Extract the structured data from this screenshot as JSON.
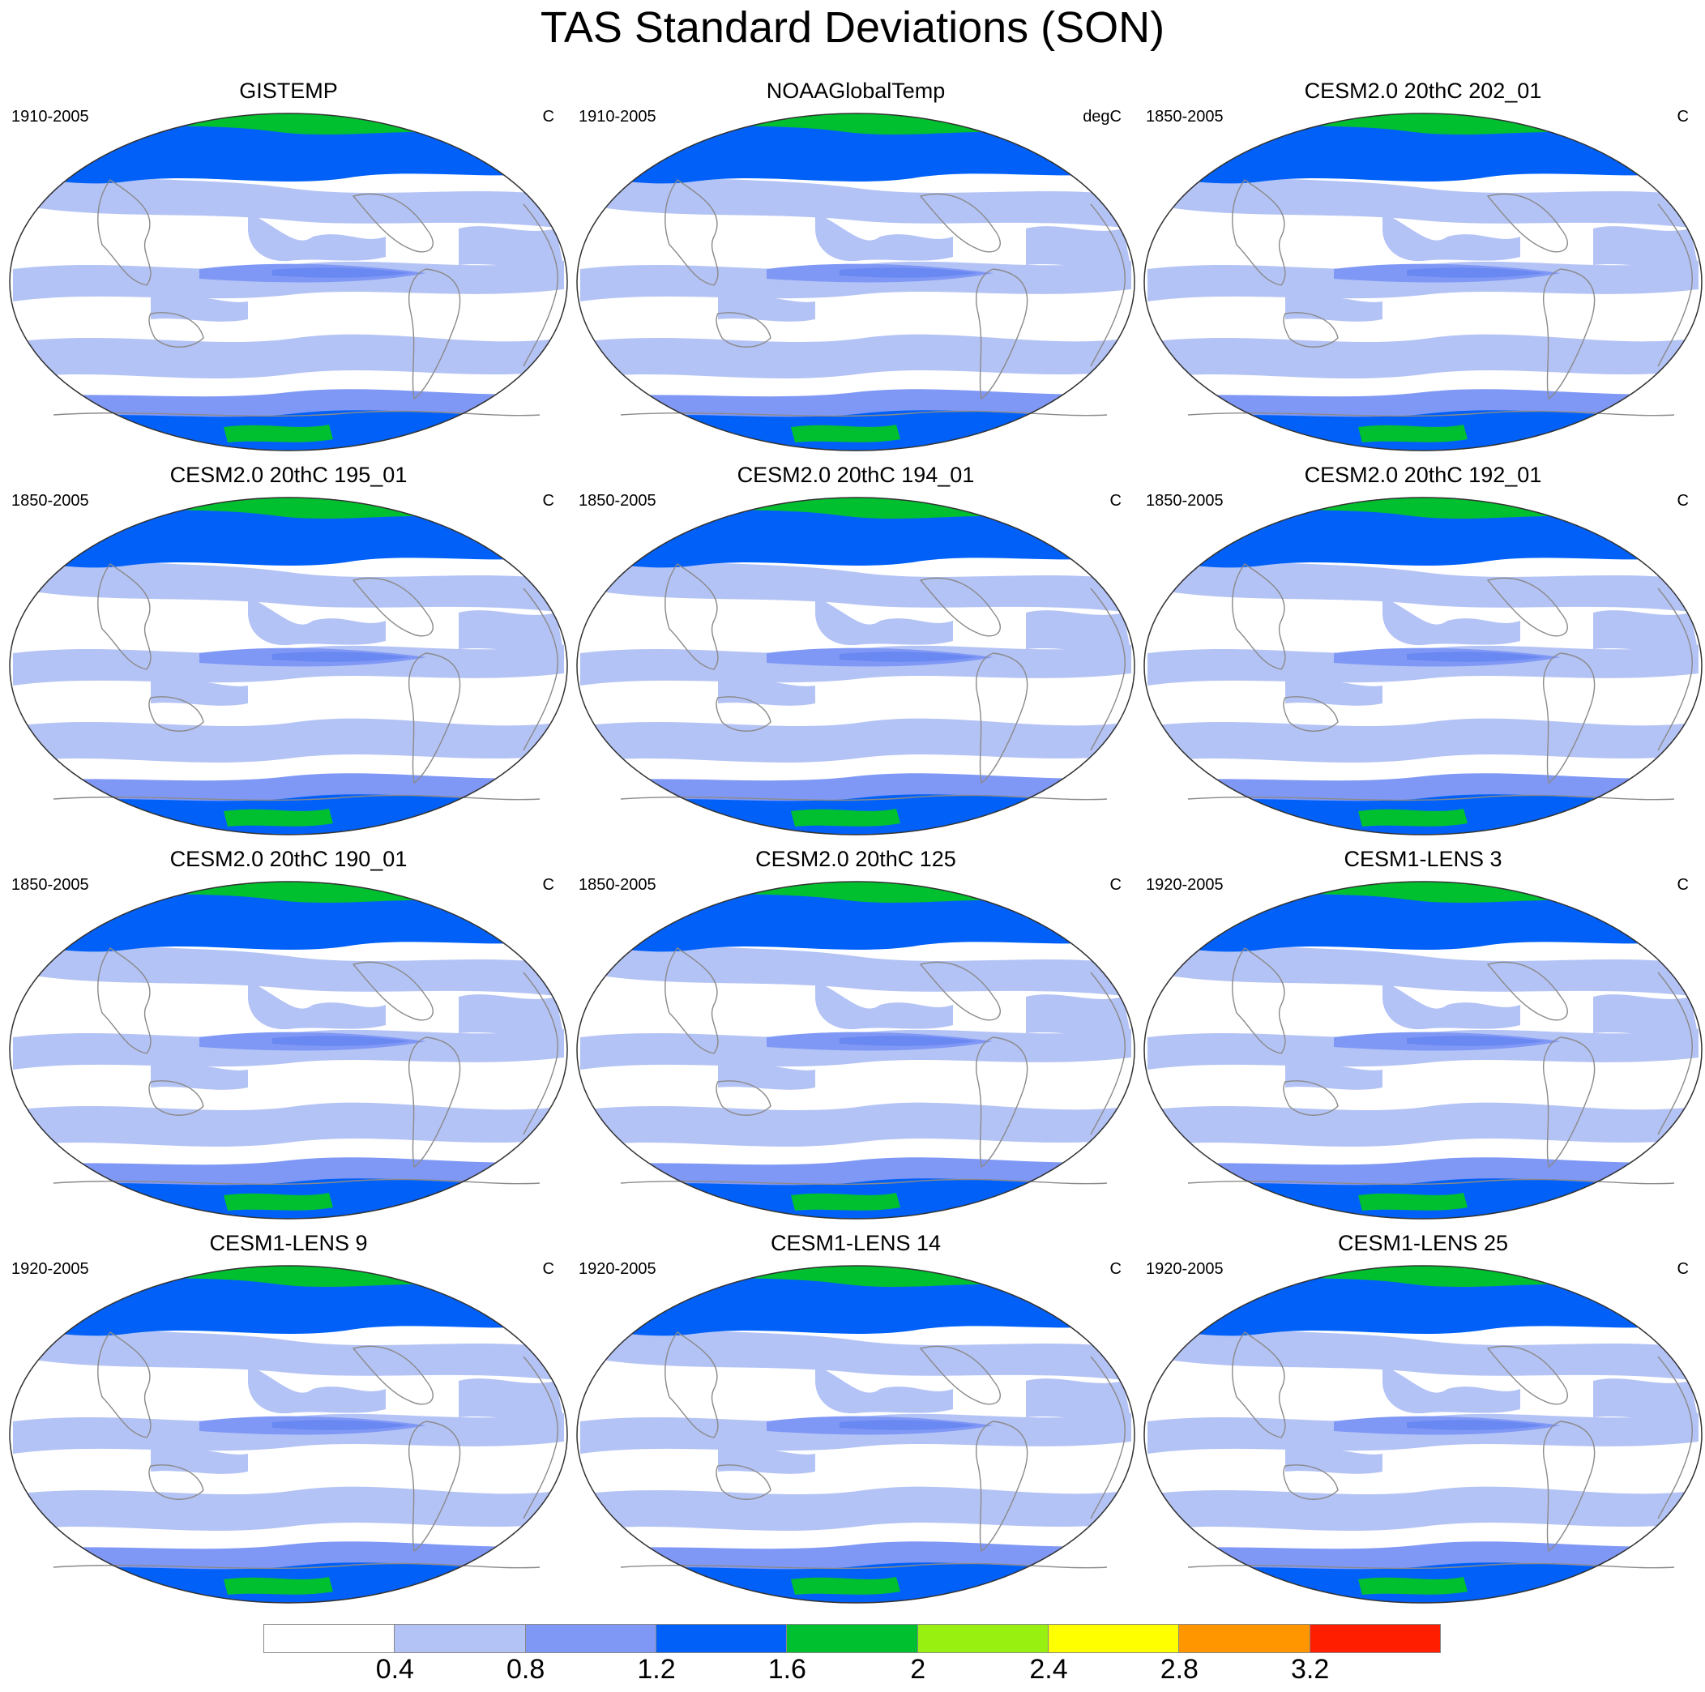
{
  "title": "TAS Standard Deviations (SON)",
  "colorbar": {
    "colors": [
      "#ffffff",
      "#b4c3f5",
      "#8098f5",
      "#0060f8",
      "#00c030",
      "#98f010",
      "#ffff00",
      "#ff9600",
      "#ff1e00"
    ],
    "labels": [
      "0.4",
      "0.8",
      "1.2",
      "1.6",
      "2",
      "2.4",
      "2.8",
      "3.2"
    ]
  },
  "panels": [
    {
      "title": "GISTEMP",
      "period": "1910-2005",
      "units": "C"
    },
    {
      "title": "NOAAGlobalTemp",
      "period": "1910-2005",
      "units": "degC"
    },
    {
      "title": "CESM2.0 20thC 202_01",
      "period": "1850-2005",
      "units": "C"
    },
    {
      "title": "CESM2.0 20thC 195_01",
      "period": "1850-2005",
      "units": "C"
    },
    {
      "title": "CESM2.0 20thC 194_01",
      "period": "1850-2005",
      "units": "C"
    },
    {
      "title": "CESM2.0 20thC 192_01",
      "period": "1850-2005",
      "units": "C"
    },
    {
      "title": "CESM2.0 20thC 190_01",
      "period": "1850-2005",
      "units": "C"
    },
    {
      "title": "CESM2.0 20thC 125",
      "period": "1850-2005",
      "units": "C"
    },
    {
      "title": "CESM1-LENS 3",
      "period": "1920-2005",
      "units": "C"
    },
    {
      "title": "CESM1-LENS 9",
      "period": "1920-2005",
      "units": "C"
    },
    {
      "title": "CESM1-LENS 14",
      "period": "1920-2005",
      "units": "C"
    },
    {
      "title": "CESM1-LENS 25",
      "period": "1920-2005",
      "units": "C"
    }
  ]
}
